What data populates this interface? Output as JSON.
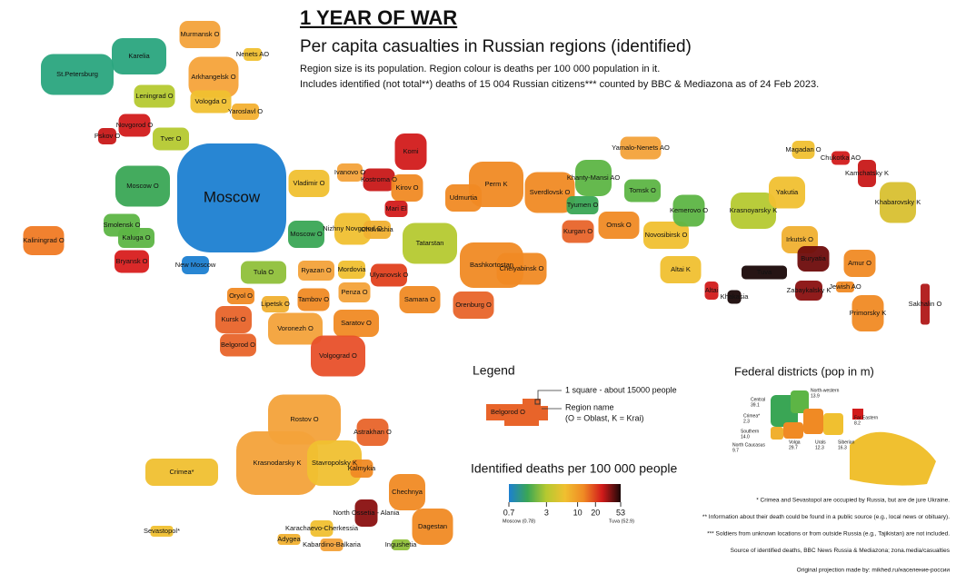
{
  "title": "1 YEAR OF WAR",
  "subtitle": "Per capita casualties in Russian regions (identified)",
  "description": [
    "Region size is its population. Region colour is deaths per 100 000 population in it.",
    "Includes identified (not total**) deaths of 15 004 Russian citizens*** counted by BBC & Mediazona as of 24 Feb 2023."
  ],
  "regions": [
    {
      "label": "Murmansk O",
      "color": "#f3a23a"
    },
    {
      "label": "Karelia",
      "color": "#2aa57e"
    },
    {
      "label": "St.Petersburg",
      "color": "#2aa57e"
    },
    {
      "label": "Nenets AO",
      "color": "#f0c030"
    },
    {
      "label": "Arkhangelsk O",
      "color": "#f5a33a"
    },
    {
      "label": "Leningrad O",
      "color": "#b5c930"
    },
    {
      "label": "Vologda O",
      "color": "#f0c030"
    },
    {
      "label": "Yaroslavl O",
      "color": "#f3b030"
    },
    {
      "label": "Novgorod O",
      "color": "#d21b1b"
    },
    {
      "label": "Pskov O",
      "color": "#c81818"
    },
    {
      "label": "Tver O",
      "color": "#b5c930"
    },
    {
      "label": "Moscow O",
      "color": "#3aa655"
    },
    {
      "label": "Moscow",
      "color": "#1c7fd1"
    },
    {
      "label": "Smolensk O",
      "color": "#5db545"
    },
    {
      "label": "Kaluga O",
      "color": "#5db545"
    },
    {
      "label": "Bryansk O",
      "color": "#d81e1e"
    },
    {
      "label": "New Moscow",
      "color": "#1c7fd1"
    },
    {
      "label": "Kaliningrad O",
      "color": "#f07a24"
    },
    {
      "label": "Tula O",
      "color": "#8fc03a"
    },
    {
      "label": "Oryol O",
      "color": "#f08a24"
    },
    {
      "label": "Lipetsk O",
      "color": "#f0b030"
    },
    {
      "label": "Kursk O",
      "color": "#e8642a"
    },
    {
      "label": "Tambov O",
      "color": "#f08a24"
    },
    {
      "label": "Voronezh O",
      "color": "#f3a23a"
    },
    {
      "label": "Belgorod O",
      "color": "#e8642a"
    },
    {
      "label": "Ryazan O",
      "color": "#f3a23a"
    },
    {
      "label": "Mordovia",
      "color": "#f0c030"
    },
    {
      "label": "Penza O",
      "color": "#f3a23a"
    },
    {
      "label": "Ulyanovsk O",
      "color": "#e0401e"
    },
    {
      "label": "Samara O",
      "color": "#f08a24"
    },
    {
      "label": "Saratov O",
      "color": "#f08a24"
    },
    {
      "label": "Volgograd O",
      "color": "#e8502a"
    },
    {
      "label": "Vladimir O",
      "color": "#f0c030"
    },
    {
      "label": "Ivanovo O",
      "color": "#f3a23a"
    },
    {
      "label": "Kostroma O",
      "color": "#c81818"
    },
    {
      "label": "Kirov O",
      "color": "#f08a24"
    },
    {
      "label": "Komi",
      "color": "#d21b1b"
    },
    {
      "label": "Mari El",
      "color": "#d21b1b"
    },
    {
      "label": "Nizhny Novgorod O",
      "color": "#f0c030"
    },
    {
      "label": "Chuvashia",
      "color": "#f0b030"
    },
    {
      "label": "Moscow O",
      "color": "#3aa655"
    },
    {
      "label": "Tatarstan",
      "color": "#b5c930"
    },
    {
      "label": "Udmurtia",
      "color": "#f08a24"
    },
    {
      "label": "Perm K",
      "color": "#f08a24"
    },
    {
      "label": "Bashkortostan",
      "color": "#f08a24"
    },
    {
      "label": "Orenburg O",
      "color": "#e8642a"
    },
    {
      "label": "Chelyabinsk O",
      "color": "#f08a24"
    },
    {
      "label": "Sverdlovsk O",
      "color": "#f08a24"
    },
    {
      "label": "Kurgan O",
      "color": "#e8642a"
    },
    {
      "label": "Tyumen O",
      "color": "#3aa655"
    },
    {
      "label": "Khanty-Mansi AO",
      "color": "#5db545"
    },
    {
      "label": "Yamalo-Nenets AO",
      "color": "#f3a23a"
    },
    {
      "label": "Tomsk O",
      "color": "#5db545"
    },
    {
      "label": "Omsk O",
      "color": "#f08a24"
    },
    {
      "label": "Novosibirsk O",
      "color": "#f0c030"
    },
    {
      "label": "Altai K",
      "color": "#f0c030"
    },
    {
      "label": "Kemerovo O",
      "color": "#5db545"
    },
    {
      "label": "Krasnoyarsky K",
      "color": "#b5c930"
    },
    {
      "label": "Altai",
      "color": "#d21b1b"
    },
    {
      "label": "Khakasia",
      "color": "#1a0808"
    },
    {
      "label": "Tuva",
      "color": "#1a0808"
    },
    {
      "label": "Irkutsk O",
      "color": "#f0b030"
    },
    {
      "label": "Buryatia",
      "color": "#6e0c0c"
    },
    {
      "label": "Zabaykalsky K",
      "color": "#8a1010"
    },
    {
      "label": "Yakutia",
      "color": "#f0c030"
    },
    {
      "label": "Magadan O",
      "color": "#f0c030"
    },
    {
      "label": "Chukotka AO",
      "color": "#d21b1b"
    },
    {
      "label": "Kamchatsky K",
      "color": "#c81818"
    },
    {
      "label": "Khabarovsky K",
      "color": "#d8c030"
    },
    {
      "label": "Amur O",
      "color": "#f08a24"
    },
    {
      "label": "Jewish AO",
      "color": "#f08a24"
    },
    {
      "label": "Primorsky K",
      "color": "#f08a24"
    },
    {
      "label": "Sakhalin O",
      "color": "#b01818"
    },
    {
      "label": "Rostov O",
      "color": "#f3a23a"
    },
    {
      "label": "Astrakhan O",
      "color": "#e8642a"
    },
    {
      "label": "Krasnodarsky K",
      "color": "#f3a23a"
    },
    {
      "label": "Stavropolsky K",
      "color": "#f0c030"
    },
    {
      "label": "Kalmykia",
      "color": "#f08a24"
    },
    {
      "label": "Chechnya",
      "color": "#f08a24"
    },
    {
      "label": "Dagestan",
      "color": "#f08a24"
    },
    {
      "label": "Crimea*",
      "color": "#f0c030"
    },
    {
      "label": "Sevastopol*",
      "color": "#f0c030"
    },
    {
      "label": "Karachaevo-Cherkessia",
      "color": "#f0c030"
    },
    {
      "label": "Adygea",
      "color": "#f0b030"
    },
    {
      "label": "Kabardino-Balkaria",
      "color": "#f3a23a"
    },
    {
      "label": "North Ossetia - Alania",
      "color": "#8a1010"
    },
    {
      "label": "Ingushetia",
      "color": "#8fc03a"
    }
  ],
  "legend": {
    "title": "Legend",
    "square": "1 square - about 15000 people",
    "region_name": "Region name",
    "region_note": "(O = Oblast, K = Krai)",
    "example": "Belgorod O"
  },
  "scale": {
    "title": "Identified deaths per 100 000 people",
    "ticks": [
      0.7,
      3,
      10,
      20,
      53
    ],
    "min_label": "Moscow (0.78)",
    "max_label": "Tuva (52.9)",
    "log": true,
    "colors": [
      "#1c7fd1",
      "#3aa655",
      "#b5c930",
      "#f0c030",
      "#f08a24",
      "#d21b1b",
      "#1a0808"
    ]
  },
  "federal": {
    "title": "Federal districts (pop in m)",
    "districts": [
      {
        "name": "Central",
        "pop": "39.1"
      },
      {
        "name": "North-western",
        "pop": "13.9"
      },
      {
        "name": "Crimea*",
        "pop": "2.3"
      },
      {
        "name": "Southern",
        "pop": "14.0"
      },
      {
        "name": "Far Eastern",
        "pop": "8.2"
      },
      {
        "name": "North Caucasus",
        "pop": "9.7"
      },
      {
        "name": "Volga",
        "pop": "29.7"
      },
      {
        "name": "Urals",
        "pop": "12.3"
      },
      {
        "name": "Siberian",
        "pop": "16.3"
      }
    ]
  },
  "footnotes": [
    "* Crimea and Sevastopol are occupied by Russia, but are de jure Ukraine.",
    "** Information about their death could be found in a public source (e.g., local news or obituary).",
    "*** Soldiers from unknown locations or from outside Russia (e.g., Tajikistan) are not included.",
    "Source of identified deaths, BBC News Russia & Mediazona; zona.media/casualties",
    "Original projection made by: mikhed.ru/население-россии"
  ]
}
